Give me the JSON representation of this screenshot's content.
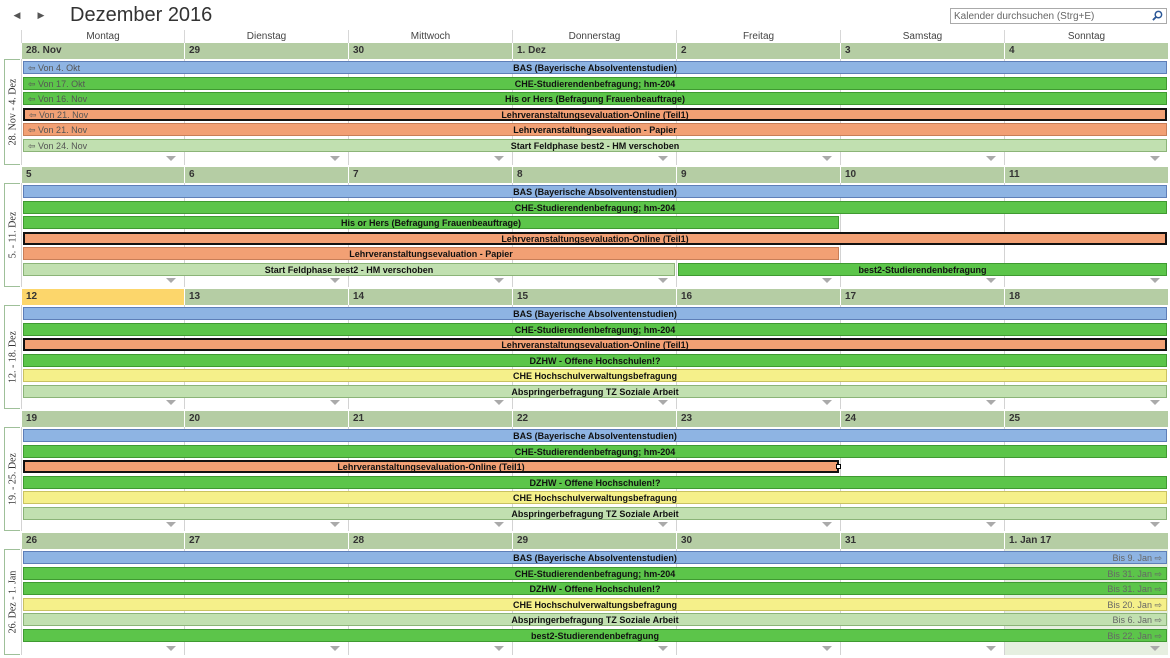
{
  "header": {
    "month_title": "Dezember 2016",
    "prev_icon": "triangle-left-icon",
    "next_icon": "triangle-right-icon",
    "search_placeholder": "Kalender durchsuchen (Strg+E)",
    "search_icon": "magnifier-icon"
  },
  "day_names": [
    "Montag",
    "Dienstag",
    "Mittwoch",
    "Donnerstag",
    "Freitag",
    "Samstag",
    "Sonntag"
  ],
  "colors": {
    "blue": "#8eb4e3",
    "green": "#5cc54a",
    "orange": "#f2a074",
    "yellow": "#f5f08a",
    "light_green": "#c1e0b0",
    "day_number_bg": "#b5cda4",
    "today": "#fcd66b"
  },
  "weeks": [
    {
      "label": "28. Nov - 4. Dez",
      "days": [
        "28. Nov",
        "29",
        "30",
        "1. Dez",
        "2",
        "3",
        "4"
      ],
      "today_index": -1,
      "events": [
        {
          "title": "BAS (Bayerische Absolventenstudien)",
          "from": "Von 4. Okt",
          "color": "blue",
          "start": 0,
          "end": 7
        },
        {
          "title": "CHE-Studierendenbefragung; hm-204",
          "from": "Von 17. Okt",
          "color": "green",
          "start": 0,
          "end": 7
        },
        {
          "title": "His or Hers (Befragung Frauenbeauftrage)",
          "from": "Von 16. Nov",
          "color": "green",
          "start": 0,
          "end": 7
        },
        {
          "title": "Lehrveranstaltungsevaluation-Online (Teil1)",
          "from": "Von 21. Nov",
          "color": "orange",
          "start": 0,
          "end": 7,
          "selected": true
        },
        {
          "title": "Lehrveranstaltungsevaluation - Papier",
          "from": "Von 21. Nov",
          "color": "orange",
          "start": 0,
          "end": 7
        },
        {
          "title": "Start Feldphase best2 - HM verschoben",
          "from": "Von 24. Nov",
          "color": "lgreen",
          "start": 0,
          "end": 7
        }
      ]
    },
    {
      "label": "5. - 11. Dez",
      "days": [
        "5",
        "6",
        "7",
        "8",
        "9",
        "10",
        "11"
      ],
      "today_index": -1,
      "events": [
        {
          "title": "BAS (Bayerische Absolventenstudien)",
          "color": "blue",
          "start": 0,
          "end": 7
        },
        {
          "title": "CHE-Studierendenbefragung; hm-204",
          "color": "green",
          "start": 0,
          "end": 7
        },
        {
          "title": "His or Hers (Befragung Frauenbeauftrage)",
          "color": "green",
          "start": 0,
          "end": 5
        },
        {
          "title": "Lehrveranstaltungsevaluation-Online (Teil1)",
          "color": "orange",
          "start": 0,
          "end": 7,
          "selected": true
        },
        {
          "title": "Lehrveranstaltungsevaluation - Papier",
          "color": "orange",
          "start": 0,
          "end": 5
        },
        {
          "title": "Start Feldphase best2 - HM verschoben",
          "color": "lgreen",
          "start": 0,
          "end": 4,
          "row": 5
        },
        {
          "title": "best2-Studierendenbefragung",
          "color": "green",
          "start": 4,
          "end": 7,
          "row": 5
        }
      ]
    },
    {
      "label": "12. - 18. Dez",
      "days": [
        "12",
        "13",
        "14",
        "15",
        "16",
        "17",
        "18"
      ],
      "today_index": 0,
      "events": [
        {
          "title": "BAS (Bayerische Absolventenstudien)",
          "color": "blue",
          "start": 0,
          "end": 7
        },
        {
          "title": "CHE-Studierendenbefragung; hm-204",
          "color": "green",
          "start": 0,
          "end": 7
        },
        {
          "title": "Lehrveranstaltungsevaluation-Online (Teil1)",
          "color": "orange",
          "start": 0,
          "end": 7,
          "selected": true
        },
        {
          "title": "DZHW - Offene Hochschulen!?",
          "color": "green",
          "start": 0,
          "end": 7
        },
        {
          "title": "CHE Hochschulverwaltungsbefragung",
          "color": "yellow",
          "start": 0,
          "end": 7
        },
        {
          "title": "Abspringerbefragung TZ Soziale Arbeit",
          "color": "lgreen",
          "start": 0,
          "end": 7
        }
      ]
    },
    {
      "label": "19. - 25. Dez",
      "days": [
        "19",
        "20",
        "21",
        "22",
        "23",
        "24",
        "25"
      ],
      "today_index": -1,
      "events": [
        {
          "title": "BAS (Bayerische Absolventenstudien)",
          "color": "blue",
          "start": 0,
          "end": 7
        },
        {
          "title": "CHE-Studierendenbefragung; hm-204",
          "color": "green",
          "start": 0,
          "end": 7
        },
        {
          "title": "Lehrveranstaltungsevaluation-Online (Teil1)",
          "color": "orange",
          "start": 0,
          "end": 5,
          "selected": true
        },
        {
          "title": "DZHW - Offene Hochschulen!?",
          "color": "green",
          "start": 0,
          "end": 7
        },
        {
          "title": "CHE Hochschulverwaltungsbefragung",
          "color": "yellow",
          "start": 0,
          "end": 7
        },
        {
          "title": "Abspringerbefragung TZ Soziale Arbeit",
          "color": "lgreen",
          "start": 0,
          "end": 7
        }
      ]
    },
    {
      "label": "26. Dez - 1. Jan",
      "days": [
        "26",
        "27",
        "28",
        "29",
        "30",
        "31",
        "1. Jan 17"
      ],
      "today_index": -1,
      "events": [
        {
          "title": "BAS (Bayerische Absolventenstudien)",
          "to": "Bis 9. Jan",
          "color": "blue",
          "start": 0,
          "end": 7
        },
        {
          "title": "CHE-Studierendenbefragung; hm-204",
          "to": "Bis 31. Jan",
          "color": "green",
          "start": 0,
          "end": 7
        },
        {
          "title": "DZHW - Offene Hochschulen!?",
          "to": "Bis 31. Jan",
          "color": "green",
          "start": 0,
          "end": 7
        },
        {
          "title": "CHE Hochschulverwaltungsbefragung",
          "to": "Bis 20. Jan",
          "color": "yellow",
          "start": 0,
          "end": 7
        },
        {
          "title": "Abspringerbefragung TZ Soziale Arbeit",
          "to": "Bis 6. Jan",
          "color": "lgreen",
          "start": 0,
          "end": 7
        },
        {
          "title": "best2-Studierendenbefragung",
          "to": "Bis 22. Jan",
          "color": "green",
          "start": 0,
          "end": 7
        }
      ]
    }
  ]
}
